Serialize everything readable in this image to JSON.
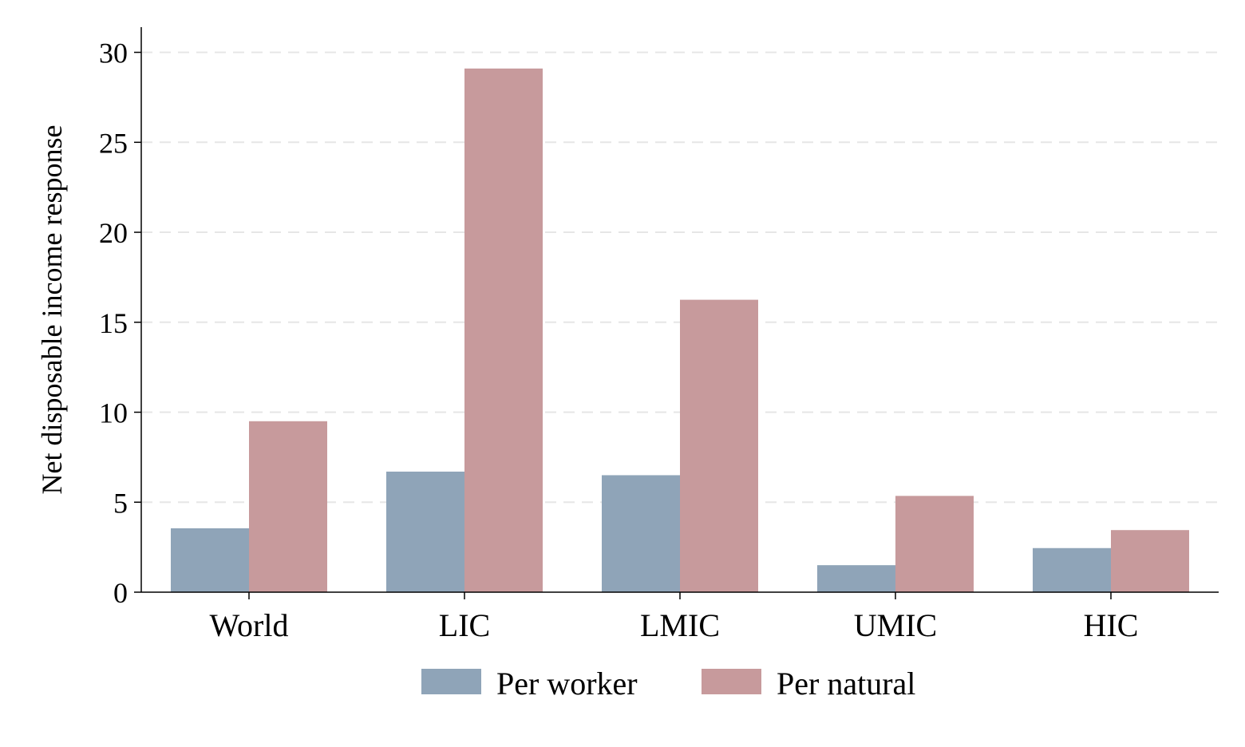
{
  "chart_data": {
    "type": "bar",
    "title": "",
    "xlabel": "",
    "ylabel": "Net disposable income response",
    "categories": [
      "World",
      "LIC",
      "LMIC",
      "UMIC",
      "HIC"
    ],
    "series": [
      {
        "name": "Per worker",
        "color": "#8fa4b8",
        "values": [
          3.55,
          6.7,
          6.5,
          1.5,
          2.45
        ]
      },
      {
        "name": "Per natural",
        "color": "#c79a9c",
        "values": [
          9.5,
          29.1,
          16.25,
          5.35,
          3.45
        ]
      }
    ],
    "ylim": [
      0,
      30
    ],
    "yticks": [
      "0",
      "5",
      "10",
      "15",
      "20",
      "25",
      "30"
    ],
    "grid": true,
    "legend_position": "bottom"
  }
}
